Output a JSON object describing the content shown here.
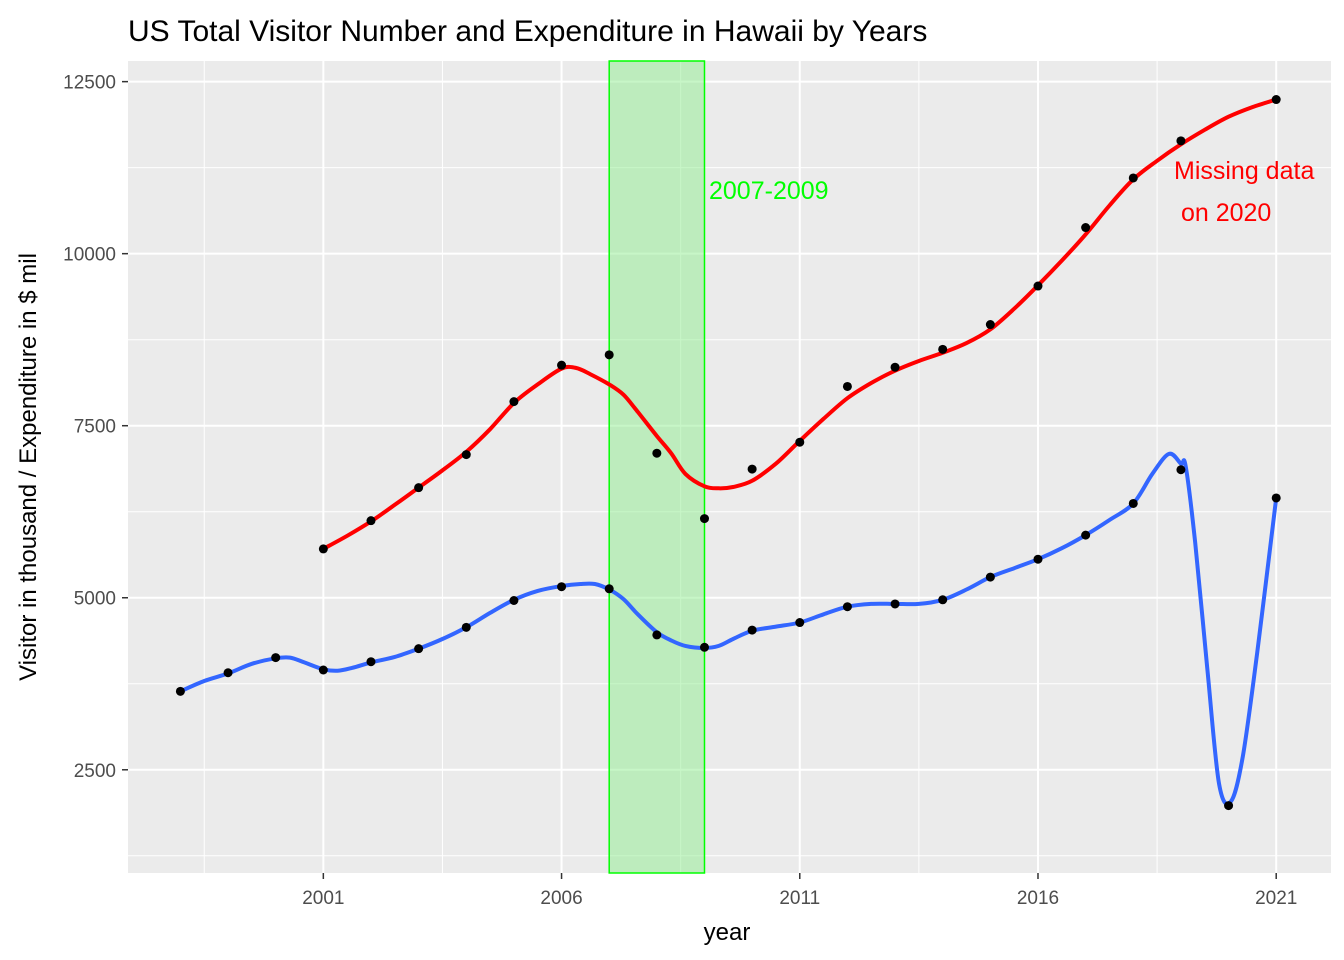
{
  "chart_data": {
    "type": "line",
    "title": "US Total Visitor Number and Expenditure in Hawaii by Years",
    "xlabel": "year",
    "ylabel": "Visitor in thousand / Expenditure in $ mil",
    "xlim": [
      1996.9,
      2022.15
    ],
    "ylim": [
      1000,
      12800
    ],
    "x_ticks": [
      2001,
      2006,
      2011,
      2016,
      2021
    ],
    "y_ticks": [
      2500,
      5000,
      7500,
      10000,
      12500
    ],
    "grid": true,
    "legend": "none",
    "series": [
      {
        "color": "#ff0000",
        "points": [
          {
            "x": 2001,
            "y": 5710
          },
          {
            "x": 2002,
            "y": 6120
          },
          {
            "x": 2003,
            "y": 6600
          },
          {
            "x": 2004,
            "y": 7080
          },
          {
            "x": 2005,
            "y": 7850
          },
          {
            "x": 2006,
            "y": 8380
          },
          {
            "x": 2007,
            "y": 8530
          },
          {
            "x": 2008,
            "y": 7100
          },
          {
            "x": 2009,
            "y": 6150
          },
          {
            "x": 2010,
            "y": 6870
          },
          {
            "x": 2011,
            "y": 7260
          },
          {
            "x": 2012,
            "y": 8070
          },
          {
            "x": 2013,
            "y": 8350
          },
          {
            "x": 2014,
            "y": 8610
          },
          {
            "x": 2015,
            "y": 8970
          },
          {
            "x": 2016,
            "y": 9530
          },
          {
            "x": 2017,
            "y": 10380
          },
          {
            "x": 2018,
            "y": 11100
          },
          {
            "x": 2019,
            "y": 11640
          },
          {
            "x": 2021,
            "y": 12240
          }
        ],
        "smooth": [
          [
            2001,
            5710
          ],
          [
            2001.5,
            5900
          ],
          [
            2002,
            6110
          ],
          [
            2002.5,
            6350
          ],
          [
            2003,
            6600
          ],
          [
            2003.5,
            6850
          ],
          [
            2004,
            7120
          ],
          [
            2004.5,
            7450
          ],
          [
            2005,
            7830
          ],
          [
            2005.5,
            8100
          ],
          [
            2006,
            8330
          ],
          [
            2006.3,
            8340
          ],
          [
            2006.6,
            8250
          ],
          [
            2007,
            8100
          ],
          [
            2007.3,
            7950
          ],
          [
            2007.6,
            7700
          ],
          [
            2008,
            7350
          ],
          [
            2008.3,
            7100
          ],
          [
            2008.6,
            6800
          ],
          [
            2009,
            6620
          ],
          [
            2009.3,
            6590
          ],
          [
            2009.6,
            6610
          ],
          [
            2010,
            6700
          ],
          [
            2010.5,
            6950
          ],
          [
            2011,
            7280
          ],
          [
            2011.5,
            7600
          ],
          [
            2012,
            7900
          ],
          [
            2012.5,
            8120
          ],
          [
            2013,
            8300
          ],
          [
            2013.5,
            8440
          ],
          [
            2014,
            8560
          ],
          [
            2014.5,
            8700
          ],
          [
            2015,
            8900
          ],
          [
            2015.5,
            9200
          ],
          [
            2016,
            9540
          ],
          [
            2016.5,
            9900
          ],
          [
            2017,
            10280
          ],
          [
            2017.5,
            10700
          ],
          [
            2018,
            11080
          ],
          [
            2018.5,
            11350
          ],
          [
            2019,
            11590
          ],
          [
            2019.5,
            11800
          ],
          [
            2020,
            11990
          ],
          [
            2020.5,
            12130
          ],
          [
            2021,
            12240
          ]
        ]
      },
      {
        "color": "#3366ff",
        "points": [
          {
            "x": 1998,
            "y": 3640
          },
          {
            "x": 1999,
            "y": 3910
          },
          {
            "x": 2000,
            "y": 4130
          },
          {
            "x": 2001,
            "y": 3950
          },
          {
            "x": 2002,
            "y": 4070
          },
          {
            "x": 2003,
            "y": 4260
          },
          {
            "x": 2004,
            "y": 4570
          },
          {
            "x": 2005,
            "y": 4960
          },
          {
            "x": 2006,
            "y": 5160
          },
          {
            "x": 2007,
            "y": 5130
          },
          {
            "x": 2008,
            "y": 4460
          },
          {
            "x": 2009,
            "y": 4280
          },
          {
            "x": 2010,
            "y": 4530
          },
          {
            "x": 2011,
            "y": 4640
          },
          {
            "x": 2012,
            "y": 4870
          },
          {
            "x": 2013,
            "y": 4910
          },
          {
            "x": 2014,
            "y": 4970
          },
          {
            "x": 2015,
            "y": 5300
          },
          {
            "x": 2016,
            "y": 5560
          },
          {
            "x": 2017,
            "y": 5910
          },
          {
            "x": 2018,
            "y": 6370
          },
          {
            "x": 2019,
            "y": 6860
          },
          {
            "x": 2020,
            "y": 1980
          },
          {
            "x": 2021,
            "y": 6450
          }
        ],
        "smooth": [
          [
            1998,
            3640
          ],
          [
            1998.5,
            3790
          ],
          [
            1999,
            3900
          ],
          [
            1999.5,
            4040
          ],
          [
            2000,
            4120
          ],
          [
            2000.3,
            4130
          ],
          [
            2000.6,
            4060
          ],
          [
            2001,
            3960
          ],
          [
            2001.3,
            3940
          ],
          [
            2001.6,
            3980
          ],
          [
            2002,
            4060
          ],
          [
            2002.5,
            4140
          ],
          [
            2003,
            4260
          ],
          [
            2003.5,
            4400
          ],
          [
            2004,
            4570
          ],
          [
            2004.5,
            4780
          ],
          [
            2005,
            4970
          ],
          [
            2005.5,
            5100
          ],
          [
            2006,
            5170
          ],
          [
            2006.4,
            5200
          ],
          [
            2006.7,
            5200
          ],
          [
            2007,
            5120
          ],
          [
            2007.3,
            4980
          ],
          [
            2007.6,
            4760
          ],
          [
            2008,
            4500
          ],
          [
            2008.3,
            4380
          ],
          [
            2008.6,
            4300
          ],
          [
            2009,
            4270
          ],
          [
            2009.3,
            4300
          ],
          [
            2009.6,
            4400
          ],
          [
            2010,
            4520
          ],
          [
            2010.5,
            4580
          ],
          [
            2011,
            4640
          ],
          [
            2011.5,
            4760
          ],
          [
            2012,
            4870
          ],
          [
            2012.5,
            4910
          ],
          [
            2013,
            4910
          ],
          [
            2013.5,
            4910
          ],
          [
            2014,
            4970
          ],
          [
            2014.5,
            5120
          ],
          [
            2015,
            5300
          ],
          [
            2015.5,
            5430
          ],
          [
            2016,
            5560
          ],
          [
            2016.5,
            5720
          ],
          [
            2017,
            5910
          ],
          [
            2017.5,
            6130
          ],
          [
            2018,
            6370
          ],
          [
            2018.4,
            6800
          ],
          [
            2018.75,
            7090
          ],
          [
            2019,
            6950
          ],
          [
            2019.1,
            6910
          ],
          [
            2019.3,
            5800
          ],
          [
            2019.55,
            4000
          ],
          [
            2019.8,
            2300
          ],
          [
            2020.05,
            2040
          ],
          [
            2020.3,
            2700
          ],
          [
            2020.6,
            4200
          ],
          [
            2021,
            6450
          ]
        ]
      }
    ],
    "shaded_region": {
      "x_start": 2007,
      "x_end": 2009,
      "fill": "#90ee90",
      "stroke": "#00ff00",
      "label": "2007-2009"
    },
    "annotations": [
      {
        "text": "2007-2009",
        "color": "#00ff00"
      },
      {
        "text": "Missing data",
        "color": "#ff0000"
      },
      {
        "text": " on 2020",
        "color": "#ff0000"
      }
    ]
  }
}
